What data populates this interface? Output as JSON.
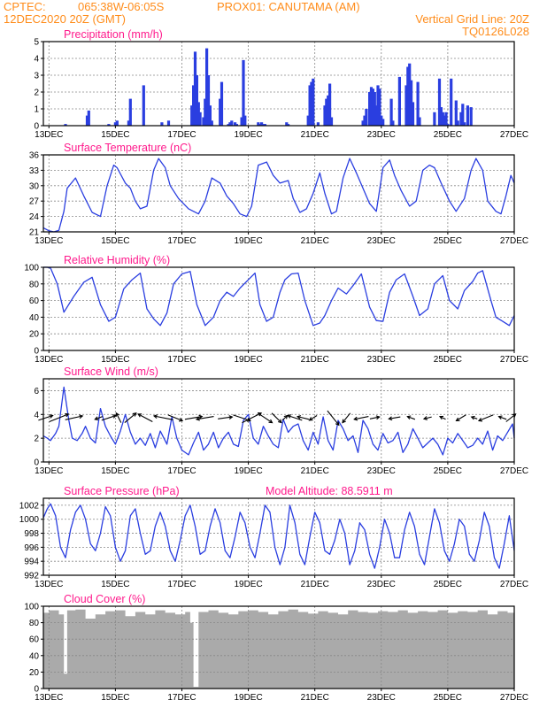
{
  "header": {
    "line1_left": "CPTEC:",
    "line1_mid": "065:38W-06:05S",
    "line1_right": "PROX01: CANUTAMA (AM)",
    "line2_left": "12DEC2020 20Z (GMT)",
    "line2_right": "Vertical Grid Line: 20Z",
    "line3_right": "TQ0126L028"
  },
  "colors": {
    "header": "#ff8c1a",
    "panel_title": "#ff1a8c",
    "series": "#2a3ee0",
    "cloud": "#aaaaaa",
    "grid": "#888888",
    "arrow": "#000000"
  },
  "x_ticks": [
    "13DEC",
    "15DEC",
    "17DEC",
    "19DEC",
    "21DEC",
    "23DEC",
    "25DEC",
    "27DEC"
  ],
  "chart_data": [
    {
      "type": "bar",
      "title": "Precipitation (mm/h)",
      "ylim": [
        0,
        5
      ],
      "yticks": [
        "0",
        "1",
        "2",
        "3",
        "4",
        "5"
      ],
      "x_range_days": [
        12.833,
        27.0
      ],
      "x": [
        13.5,
        14.15,
        14.2,
        14.8,
        15.0,
        15.05,
        15.4,
        15.45,
        15.85,
        16.4,
        16.6,
        17.3,
        17.35,
        17.4,
        17.45,
        17.5,
        17.55,
        17.65,
        17.7,
        17.75,
        17.8,
        17.85,
        17.9,
        18.15,
        18.2,
        18.4,
        18.45,
        18.5,
        18.6,
        18.65,
        18.8,
        18.85,
        18.9,
        19.3,
        19.35,
        19.4,
        19.45,
        19.5,
        20.15,
        20.2,
        20.8,
        20.85,
        20.9,
        20.95,
        21.1,
        21.3,
        21.35,
        21.4,
        21.45,
        21.5,
        22.45,
        22.5,
        22.55,
        22.65,
        22.7,
        22.75,
        22.8,
        22.85,
        22.9,
        22.95,
        23.0,
        23.05,
        23.3,
        23.35,
        23.55,
        23.75,
        23.8,
        23.85,
        23.9,
        23.95,
        24.1,
        24.15,
        24.6,
        24.75,
        24.8,
        24.85,
        24.9,
        24.95,
        25.0,
        25.1,
        25.25,
        25.3,
        25.4,
        25.45,
        25.5,
        25.6,
        25.7
      ],
      "values": [
        0.1,
        0.6,
        0.9,
        0.1,
        0.2,
        0.3,
        0.3,
        1.6,
        2.4,
        0.2,
        0.3,
        1.2,
        2.4,
        4.4,
        3.0,
        1.4,
        0.8,
        0.5,
        1.6,
        4.6,
        3.0,
        1.2,
        0.3,
        1.6,
        2.6,
        0.1,
        0.2,
        0.3,
        0.2,
        0.1,
        0.5,
        3.9,
        0.6,
        0.2,
        0.1,
        0.2,
        0.1,
        0.1,
        0.2,
        0.1,
        0.6,
        2.4,
        2.6,
        2.8,
        0.2,
        1.2,
        1.6,
        1.8,
        2.5,
        0.5,
        0.3,
        0.6,
        1.0,
        2.0,
        2.3,
        2.2,
        2.0,
        1.2,
        2.4,
        2.2,
        0.6,
        0.4,
        1.6,
        0.3,
        2.9,
        2.4,
        3.5,
        3.7,
        2.7,
        1.4,
        2.6,
        0.5,
        0.8,
        2.8,
        1.1,
        0.8,
        0.6,
        0.8,
        0.1,
        2.8,
        1.5,
        0.3,
        0.8,
        1.3,
        0.2,
        1.2,
        1.1
      ]
    },
    {
      "type": "line",
      "title": "Surface Temperature (nC)",
      "ylim": [
        21,
        36
      ],
      "yticks": [
        "21",
        "24",
        "27",
        "30",
        "33",
        "36"
      ],
      "x_range_days": [
        12.833,
        27.0
      ],
      "x": [
        12.833,
        13.0,
        13.15,
        13.3,
        13.45,
        13.55,
        13.8,
        14.05,
        14.3,
        14.55,
        14.75,
        14.95,
        15.05,
        15.3,
        15.45,
        15.6,
        15.75,
        15.95,
        16.15,
        16.3,
        16.5,
        16.65,
        16.9,
        17.2,
        17.35,
        17.5,
        17.7,
        17.9,
        18.15,
        18.35,
        18.55,
        18.75,
        18.95,
        19.1,
        19.3,
        19.55,
        19.75,
        19.95,
        20.2,
        20.35,
        20.55,
        20.75,
        20.95,
        21.15,
        21.3,
        21.5,
        21.65,
        21.85,
        22.05,
        22.25,
        22.45,
        22.65,
        22.85,
        23.05,
        23.25,
        23.4,
        23.6,
        23.85,
        24.05,
        24.25,
        24.45,
        24.6,
        24.8,
        25.05,
        25.25,
        25.5,
        25.7,
        25.85,
        26.05,
        26.2,
        26.45,
        26.6,
        26.75,
        26.9,
        27.0
      ],
      "values": [
        21.8,
        21.2,
        21.0,
        21.3,
        25.0,
        29.5,
        31.5,
        28.0,
        24.8,
        24.0,
        30.0,
        34.0,
        33.5,
        30.5,
        29.5,
        27.0,
        25.5,
        26.0,
        33.0,
        35.3,
        33.5,
        30.0,
        27.5,
        25.5,
        25.0,
        24.5,
        27.0,
        31.5,
        30.5,
        28.0,
        26.5,
        24.5,
        24.0,
        26.0,
        34.0,
        34.6,
        32.0,
        30.5,
        31.0,
        27.5,
        24.8,
        25.5,
        28.5,
        32.5,
        28.5,
        24.5,
        25.0,
        31.5,
        35.3,
        32.5,
        29.5,
        26.5,
        25.0,
        33.5,
        35.0,
        32.0,
        29.0,
        26.0,
        27.0,
        33.0,
        34.0,
        33.5,
        30.5,
        27.0,
        25.0,
        27.5,
        33.0,
        35.3,
        33.0,
        27.0,
        25.0,
        24.5,
        28.0,
        32.0,
        30.5
      ]
    },
    {
      "type": "line",
      "title": "Relative Humidity (%)",
      "ylim": [
        0,
        100
      ],
      "yticks": [
        "0",
        "20",
        "40",
        "60",
        "80",
        "100"
      ],
      "x_range_days": [
        12.833,
        27.0
      ],
      "x": [
        12.833,
        12.95,
        13.05,
        13.25,
        13.45,
        13.75,
        14.05,
        14.3,
        14.55,
        14.8,
        15.0,
        15.25,
        15.5,
        15.75,
        15.95,
        16.15,
        16.35,
        16.55,
        16.75,
        17.0,
        17.25,
        17.45,
        17.7,
        17.95,
        18.15,
        18.35,
        18.55,
        18.75,
        19.0,
        19.2,
        19.35,
        19.55,
        19.75,
        19.95,
        20.1,
        20.3,
        20.5,
        20.7,
        20.95,
        21.15,
        21.3,
        21.5,
        21.7,
        21.95,
        22.15,
        22.4,
        22.65,
        22.85,
        23.05,
        23.25,
        23.45,
        23.7,
        23.95,
        24.15,
        24.4,
        24.6,
        24.85,
        25.05,
        25.3,
        25.5,
        25.75,
        25.9,
        26.05,
        26.3,
        26.45,
        26.65,
        26.85,
        27.0
      ],
      "values": [
        100.0,
        100.0,
        99.0,
        80.0,
        46.0,
        65.0,
        82.0,
        88.0,
        55.0,
        35.0,
        40.0,
        74.0,
        85.0,
        93.0,
        50.0,
        38.0,
        30.0,
        45.0,
        80.0,
        92.0,
        95.0,
        55.0,
        30.0,
        40.0,
        60.0,
        70.0,
        65.0,
        75.0,
        85.0,
        93.0,
        55.0,
        35.0,
        40.0,
        70.0,
        85.0,
        92.0,
        93.0,
        60.0,
        30.0,
        33.0,
        42.0,
        60.0,
        75.0,
        68.0,
        78.0,
        92.0,
        52.0,
        36.0,
        35.0,
        70.0,
        85.0,
        92.0,
        65.0,
        42.0,
        50.0,
        80.0,
        90.0,
        60.0,
        50.0,
        72.0,
        83.0,
        93.0,
        96.0,
        60.0,
        40.0,
        35.0,
        30.0,
        42.0
      ]
    },
    {
      "type": "line",
      "title": "Surface Wind (m/s)",
      "ylim": [
        0,
        7
      ],
      "yticks": [
        "0",
        "2",
        "4",
        "6"
      ],
      "x_range_days": [
        12.833,
        27.0
      ],
      "x": [
        12.833,
        12.95,
        13.05,
        13.2,
        13.3,
        13.45,
        13.6,
        13.7,
        13.85,
        14.0,
        14.1,
        14.25,
        14.4,
        14.55,
        14.7,
        14.85,
        15.0,
        15.15,
        15.3,
        15.45,
        15.6,
        15.75,
        15.9,
        16.05,
        16.2,
        16.35,
        16.55,
        16.7,
        16.85,
        17.0,
        17.2,
        17.35,
        17.5,
        17.65,
        17.8,
        17.95,
        18.1,
        18.25,
        18.4,
        18.55,
        18.7,
        18.85,
        19.0,
        19.15,
        19.3,
        19.45,
        19.6,
        19.75,
        19.9,
        20.05,
        20.2,
        20.35,
        20.5,
        20.65,
        20.8,
        20.95,
        21.1,
        21.25,
        21.4,
        21.55,
        21.7,
        21.85,
        22.0,
        22.15,
        22.3,
        22.45,
        22.6,
        22.75,
        22.9,
        23.05,
        23.2,
        23.35,
        23.5,
        23.65,
        23.8,
        23.95,
        24.1,
        24.25,
        24.4,
        24.55,
        24.7,
        24.85,
        25.0,
        25.15,
        25.3,
        25.45,
        25.6,
        25.75,
        25.9,
        26.05,
        26.2,
        26.35,
        26.5,
        26.65,
        26.8,
        26.95,
        27.0
      ],
      "values": [
        2.2,
        2.0,
        1.8,
        2.4,
        3.0,
        6.3,
        3.5,
        2.0,
        1.8,
        2.4,
        3.0,
        2.0,
        1.6,
        4.5,
        3.0,
        2.2,
        1.5,
        2.6,
        4.0,
        2.5,
        1.5,
        2.0,
        1.4,
        2.4,
        1.2,
        2.6,
        1.5,
        3.8,
        2.0,
        1.0,
        0.6,
        1.6,
        2.5,
        1.0,
        1.5,
        2.5,
        1.2,
        2.0,
        2.5,
        1.5,
        1.3,
        3.5,
        4.0,
        2.0,
        1.5,
        3.0,
        2.2,
        1.5,
        1.2,
        3.6,
        2.5,
        3.0,
        3.2,
        1.8,
        1.0,
        2.5,
        1.5,
        3.8,
        1.8,
        1.0,
        3.5,
        2.8,
        1.8,
        2.2,
        0.8,
        3.5,
        2.8,
        1.5,
        1.0,
        2.4,
        1.6,
        1.8,
        2.5,
        0.8,
        1.5,
        2.8,
        2.0,
        1.2,
        1.6,
        2.0,
        1.5,
        0.6,
        2.0,
        1.6,
        2.4,
        1.8,
        1.2,
        1.4,
        2.0,
        1.5,
        2.6,
        1.0,
        2.2,
        1.8,
        2.5,
        3.2,
        2.0
      ],
      "arrows": {
        "x": [
          12.9,
          13.3,
          13.75,
          14.5,
          14.8,
          15.1,
          15.45,
          15.9,
          16.45,
          16.8,
          17.35,
          17.7,
          18.3,
          18.8,
          19.1,
          19.5,
          19.85,
          20.1,
          20.4,
          20.65,
          20.95,
          21.55,
          21.95,
          22.4,
          22.8,
          23.4,
          23.9,
          24.4,
          24.85,
          25.4,
          25.8,
          26.15,
          26.65,
          26.9
        ],
        "u": [
          1.5,
          2.0,
          1.8,
          -0.8,
          1.5,
          -0.5,
          1.2,
          -1.5,
          -2.0,
          1.5,
          1.8,
          -1.8,
          1.5,
          1.8,
          2.0,
          1.5,
          1.0,
          0.5,
          -1.5,
          -1.2,
          -0.8,
          1.2,
          -0.8,
          -1.5,
          1.0,
          -1.2,
          -0.8,
          -0.8,
          -0.6,
          -1.0,
          -0.6,
          -1.5,
          -0.8,
          1.0
        ],
        "v": [
          0.5,
          0.8,
          0.4,
          -0.3,
          0.5,
          1.0,
          1.0,
          0.8,
          0.4,
          -0.6,
          0.3,
          -0.3,
          0.2,
          -0.6,
          1.0,
          -1.0,
          -1.0,
          0.5,
          0.5,
          0.3,
          -0.5,
          -1.5,
          -1.0,
          -0.3,
          0.2,
          -0.2,
          0.3,
          -0.2,
          0.3,
          -0.6,
          0.2,
          -0.6,
          0.3,
          0.8
        ]
      }
    },
    {
      "type": "line",
      "title": "Surface Pressure (hPa)",
      "annotation": "Model Altitude: 88.5911 m",
      "ylim": [
        992,
        1003
      ],
      "yticks": [
        "992",
        "994",
        "996",
        "998",
        "1000",
        "1002"
      ],
      "x_range_days": [
        12.833,
        27.0
      ],
      "x": [
        12.833,
        12.95,
        13.05,
        13.2,
        13.35,
        13.5,
        13.65,
        13.8,
        13.95,
        14.1,
        14.25,
        14.4,
        14.55,
        14.7,
        14.85,
        15.0,
        15.15,
        15.3,
        15.45,
        15.6,
        15.75,
        15.9,
        16.05,
        16.2,
        16.35,
        16.5,
        16.65,
        16.8,
        16.95,
        17.1,
        17.25,
        17.4,
        17.55,
        17.7,
        17.85,
        18.0,
        18.15,
        18.3,
        18.45,
        18.6,
        18.75,
        18.9,
        19.05,
        19.2,
        19.35,
        19.5,
        19.65,
        19.8,
        19.95,
        20.1,
        20.25,
        20.4,
        20.55,
        20.7,
        20.85,
        21.0,
        21.15,
        21.3,
        21.45,
        21.6,
        21.75,
        21.9,
        22.05,
        22.2,
        22.35,
        22.5,
        22.65,
        22.8,
        22.95,
        23.1,
        23.25,
        23.4,
        23.55,
        23.7,
        23.85,
        24.0,
        24.15,
        24.3,
        24.45,
        24.6,
        24.75,
        24.9,
        25.05,
        25.2,
        25.35,
        25.5,
        25.65,
        25.8,
        25.95,
        26.1,
        26.25,
        26.4,
        26.55,
        26.7,
        26.85,
        27.0
      ],
      "values": [
        1000.2,
        1001.5,
        1002.2,
        1000.5,
        996.0,
        994.5,
        998.5,
        1001.0,
        1002.0,
        1000.0,
        996.5,
        995.5,
        998.0,
        1001.8,
        1000.5,
        996.0,
        994.0,
        995.5,
        1000.5,
        1001.5,
        998.0,
        995.0,
        995.5,
        999.0,
        1001.0,
        999.0,
        995.5,
        994.0,
        997.0,
        1000.5,
        1002.0,
        999.0,
        995.0,
        995.5,
        999.0,
        1001.5,
        999.5,
        995.5,
        994.5,
        997.5,
        1001.0,
        999.5,
        996.0,
        994.5,
        998.0,
        1002.0,
        1001.0,
        996.0,
        993.5,
        996.0,
        1002.0,
        999.5,
        995.0,
        993.5,
        997.5,
        1001.0,
        999.5,
        995.5,
        995.0,
        997.0,
        1000.0,
        998.0,
        993.5,
        995.5,
        999.5,
        998.5,
        995.0,
        993.0,
        996.0,
        1000.0,
        998.0,
        994.5,
        994.5,
        998.5,
        1001.0,
        999.0,
        995.0,
        993.5,
        997.5,
        1001.5,
        999.5,
        995.5,
        994.0,
        996.5,
        1000.0,
        999.0,
        995.0,
        994.0,
        997.0,
        1001.0,
        999.0,
        994.5,
        993.0,
        996.5,
        1000.5,
        995.5
      ]
    },
    {
      "type": "bar",
      "title": "Cloud Cover (%)",
      "ylim": [
        0,
        100
      ],
      "yticks": [
        "0",
        "20",
        "40",
        "60",
        "80",
        "100"
      ],
      "x_range_days": [
        12.833,
        27.0
      ],
      "x": [
        12.833,
        13.0,
        13.3,
        13.45,
        13.55,
        13.8,
        14.1,
        14.4,
        14.7,
        15.0,
        15.3,
        15.6,
        15.9,
        16.2,
        16.5,
        16.8,
        17.1,
        17.25,
        17.35,
        17.5,
        17.8,
        18.1,
        18.4,
        18.7,
        19.0,
        19.3,
        19.6,
        19.9,
        20.2,
        20.5,
        20.8,
        21.1,
        21.4,
        21.7,
        22.0,
        22.3,
        22.6,
        22.9,
        23.2,
        23.5,
        23.8,
        24.1,
        24.4,
        24.7,
        25.0,
        25.3,
        25.6,
        25.9,
        26.2,
        26.5,
        26.8,
        27.0
      ],
      "values": [
        92.0,
        95.0,
        90.0,
        18.0,
        95.0,
        96.0,
        85.0,
        90.0,
        94.0,
        95.0,
        88.0,
        93.0,
        90.0,
        95.0,
        92.0,
        90.0,
        93.0,
        80.0,
        2.0,
        93.0,
        95.0,
        92.0,
        90.0,
        94.0,
        95.0,
        93.0,
        90.0,
        94.0,
        96.0,
        93.0,
        91.0,
        94.0,
        92.0,
        90.0,
        95.0,
        93.0,
        92.0,
        94.0,
        93.0,
        95.0,
        92.0,
        94.0,
        93.0,
        95.0,
        92.0,
        94.0,
        93.0,
        95.0,
        90.0,
        94.0,
        92.0,
        95.0
      ]
    }
  ]
}
